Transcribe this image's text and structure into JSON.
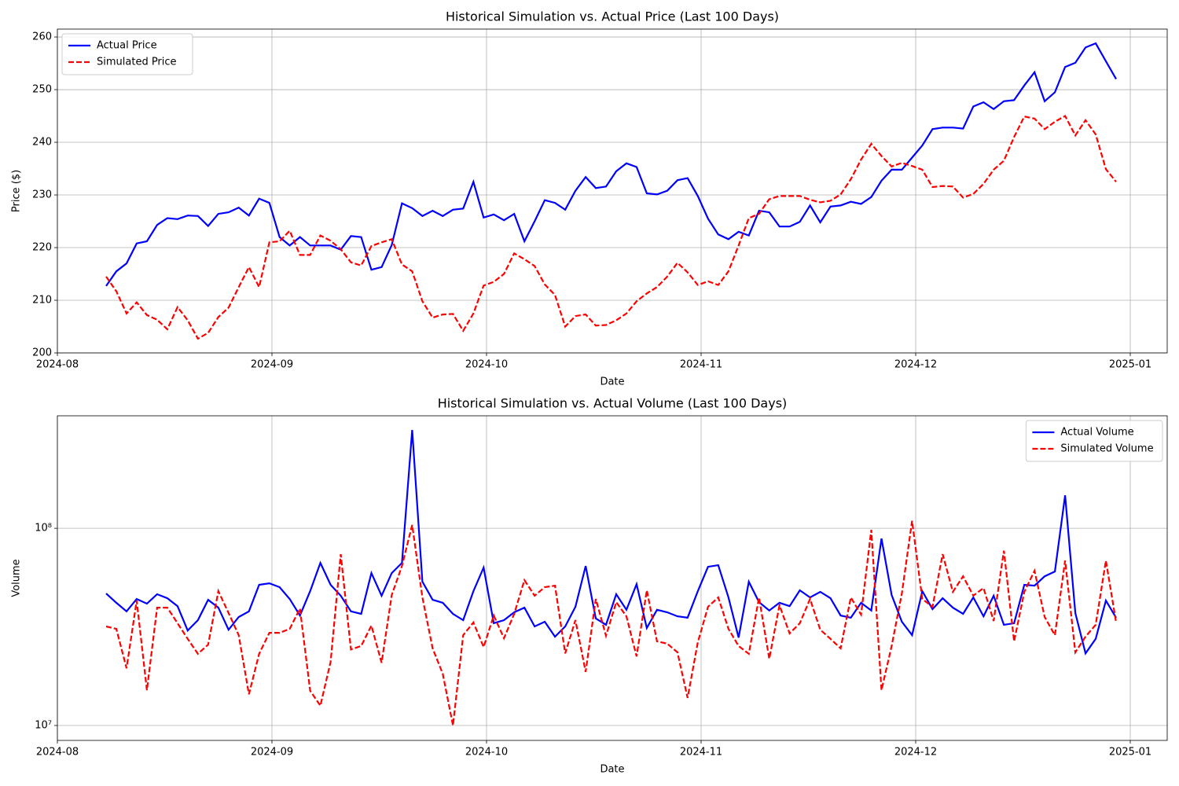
{
  "chart_data": [
    {
      "type": "line",
      "title": "Historical Simulation vs. Actual Price (Last 100 Days)",
      "xlabel": "Date",
      "ylabel": "Price ($)",
      "xticks": [
        "2024-08",
        "2024-09",
        "2024-10",
        "2024-11",
        "2024-12",
        "2025-01"
      ],
      "ylim": [
        200,
        261.5
      ],
      "yticks": [
        200,
        210,
        220,
        230,
        240,
        250,
        260
      ],
      "yscale": "linear",
      "grid": true,
      "legend": "upper left",
      "series": [
        {
          "name": "Actual Price",
          "color": "#0000ff",
          "linestyle": "solid",
          "values": [
            212.7,
            215.5,
            217,
            220.8,
            221.2,
            224.3,
            225.6,
            225.4,
            226.1,
            226,
            224.1,
            226.4,
            226.7,
            227.6,
            226.1,
            229.3,
            228.5,
            222,
            220.4,
            222,
            220.4,
            220.4,
            220.4,
            219.6,
            222.2,
            222,
            215.8,
            216.3,
            220.5,
            228.4,
            227.5,
            226,
            227,
            226,
            227.2,
            227.4,
            232.5,
            225.7,
            226.3,
            225.2,
            226.4,
            221.2,
            225,
            229,
            228.5,
            227.2,
            230.8,
            233.4,
            231.3,
            231.6,
            234.5,
            236,
            235.3,
            230.3,
            230.1,
            230.8,
            232.8,
            233.2,
            229.8,
            225.5,
            222.5,
            221.6,
            223,
            222.3,
            227,
            226.7,
            224,
            224,
            224.9,
            228,
            224.8,
            227.8,
            228,
            228.7,
            228.3,
            229.6,
            232.7,
            234.8,
            234.8,
            237.1,
            239.4,
            242.5,
            242.8,
            242.8,
            242.6,
            246.8,
            247.6,
            246.3,
            247.8,
            248,
            250.8,
            253.3,
            247.8,
            249.5,
            254.3,
            255.1,
            258,
            258.8,
            255.4,
            252
          ]
        },
        {
          "name": "Simulated Price",
          "color": "#ff0000",
          "linestyle": "dashed",
          "values": [
            214.5,
            211.7,
            207.5,
            209.6,
            207.2,
            206.3,
            204.5,
            208.7,
            206.2,
            202.7,
            203.8,
            206.8,
            208.6,
            212.5,
            216.3,
            212.5,
            221,
            221.2,
            223.2,
            218.6,
            218.6,
            222.3,
            221.3,
            219.7,
            217.2,
            216.6,
            220.3,
            221,
            221.6,
            216.8,
            215.5,
            209.8,
            206.7,
            207.3,
            207.4,
            204.2,
            207.5,
            212.8,
            213.5,
            215,
            218.9,
            217.8,
            216.5,
            213,
            211,
            205,
            207,
            207.3,
            205.2,
            205.3,
            206.2,
            207.5,
            209.8,
            211.3,
            212.5,
            214.5,
            217.1,
            215.3,
            212.9,
            213.6,
            212.9,
            215.5,
            220.4,
            225.6,
            226.4,
            229.2,
            229.8,
            229.8,
            229.8,
            229.1,
            228.6,
            228.9,
            230.1,
            233,
            236.7,
            239.7,
            237.4,
            235.4,
            236.1,
            235.5,
            234.8,
            231.5,
            231.7,
            231.6,
            229.5,
            230.2,
            232.1,
            234.8,
            236.5,
            241,
            244.9,
            244.5,
            242.5,
            243.9,
            245,
            241.3,
            244.2,
            241.5,
            234.9,
            232.5
          ]
        }
      ]
    },
    {
      "type": "line",
      "title": "Historical Simulation vs. Actual Volume (Last 100 Days)",
      "xlabel": "Date",
      "ylabel": "Volume",
      "xticks": [
        "2024-08",
        "2024-09",
        "2024-10",
        "2024-11",
        "2024-12",
        "2025-01"
      ],
      "ylim": [
        8400000,
        372000000
      ],
      "yticks": [
        {
          "value": 10000000,
          "label": "10⁷"
        },
        {
          "value": 100000000,
          "label": "10⁸"
        }
      ],
      "yscale": "log",
      "grid": true,
      "legend": "upper right",
      "series": [
        {
          "name": "Actual Volume",
          "color": "#0000ff",
          "linestyle": "solid",
          "values": [
            46700000,
            41900000,
            37900000,
            43800000,
            41500000,
            46300000,
            44200000,
            40300000,
            30300000,
            34200000,
            43400000,
            39600000,
            30600000,
            35500000,
            37900000,
            51700000,
            52600000,
            50300000,
            43800000,
            36100000,
            48000000,
            66800000,
            51700000,
            45500000,
            37900000,
            36800000,
            59300000,
            45500000,
            59300000,
            66800000,
            315000000,
            53600000,
            43400000,
            41900000,
            36800000,
            34200000,
            48000000,
            63200000,
            33000000,
            34200000,
            37500000,
            39600000,
            31800000,
            33600000,
            28200000,
            31800000,
            40000000,
            64400000,
            34900000,
            32400000,
            46300000,
            38600000,
            52100000,
            31200000,
            38600000,
            37500000,
            35800000,
            35200000,
            48000000,
            63800000,
            65000000,
            44600000,
            27900000,
            53600000,
            42200000,
            38300000,
            41900000,
            40300000,
            48500000,
            44600000,
            47600000,
            44200000,
            36100000,
            35200000,
            41900000,
            38300000,
            88700000,
            45900000,
            33600000,
            28700000,
            48000000,
            38900000,
            44200000,
            39600000,
            36800000,
            44600000,
            35800000,
            45500000,
            32400000,
            33000000,
            51700000,
            51200000,
            57100000,
            60400000,
            147000000,
            37200000,
            23200000,
            27500000,
            43000000,
            35200000
          ]
        },
        {
          "name": "Simulated Volume",
          "color": "#ff0000",
          "linestyle": "dashed",
          "values": [
            31800000,
            30900000,
            19500000,
            43000000,
            15100000,
            39600000,
            39600000,
            33000000,
            27500000,
            23100000,
            25700000,
            48000000,
            37200000,
            28700000,
            14400000,
            23100000,
            29500000,
            29500000,
            30900000,
            39200000,
            15000000,
            12600000,
            21000000,
            73900000,
            24300000,
            25300000,
            32100000,
            20800000,
            45900000,
            64400000,
            104000000,
            44600000,
            24600000,
            18300000,
            10000000,
            28700000,
            33300000,
            25000000,
            36100000,
            27700000,
            36800000,
            54600000,
            45500000,
            50300000,
            51200000,
            23200000,
            34200000,
            18700000,
            43800000,
            28500000,
            42200000,
            35800000,
            22400000,
            48500000,
            26700000,
            26000000,
            23500000,
            13800000,
            26400000,
            40000000,
            44600000,
            30900000,
            25300000,
            23100000,
            44600000,
            21800000,
            40700000,
            29300000,
            33000000,
            43800000,
            30600000,
            27500000,
            24600000,
            44600000,
            36500000,
            98200000,
            15100000,
            25300000,
            46700000,
            109000000,
            43800000,
            40000000,
            73900000,
            47600000,
            57100000,
            45500000,
            49800000,
            33900000,
            77000000,
            26700000,
            47600000,
            60900000,
            35500000,
            28700000,
            68600000,
            23500000,
            28200000,
            32400000,
            68600000,
            33300000
          ]
        }
      ]
    }
  ]
}
